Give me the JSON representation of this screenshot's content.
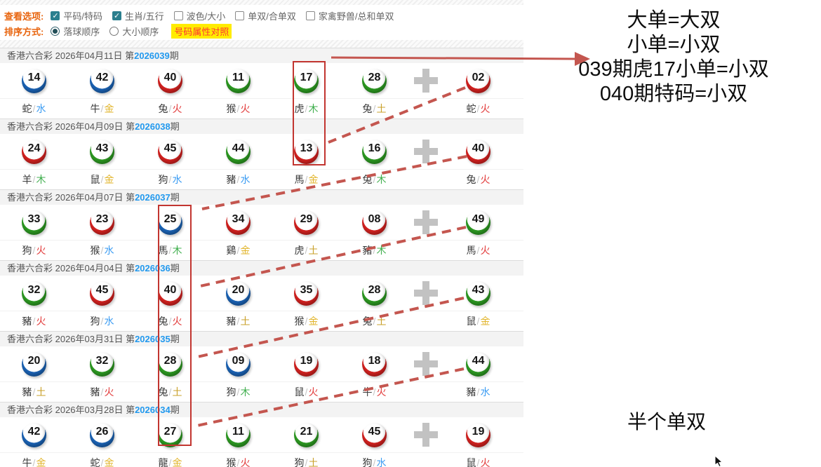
{
  "options": {
    "view_label": "查看选项:",
    "sort_label": "排序方式:",
    "checkboxes": [
      {
        "label": "平码/特码",
        "checked": true
      },
      {
        "label": "生肖/五行",
        "checked": true
      },
      {
        "label": "波色/大小",
        "checked": false
      },
      {
        "label": "单双/合单双",
        "checked": false
      },
      {
        "label": "家禽野兽/总和单双",
        "checked": false
      }
    ],
    "radios": [
      {
        "label": "落球顺序",
        "selected": true
      },
      {
        "label": "大小顺序",
        "selected": false
      }
    ],
    "compare_button": "号码属性对照"
  },
  "sections": [
    {
      "header_text": "香港六合彩 2026年04月11日 第",
      "issue": "2026039",
      "issue_suffix": "期",
      "balls": [
        {
          "num": "14",
          "color": "blue",
          "zodiac": "蛇",
          "element": "水"
        },
        {
          "num": "42",
          "color": "blue",
          "zodiac": "牛",
          "element": "金"
        },
        {
          "num": "40",
          "color": "red",
          "zodiac": "兔",
          "element": "火"
        },
        {
          "num": "11",
          "color": "green",
          "zodiac": "猴",
          "element": "火"
        },
        {
          "num": "17",
          "color": "green",
          "zodiac": "虎",
          "element": "木"
        },
        {
          "num": "28",
          "color": "green",
          "zodiac": "兔",
          "element": "土"
        },
        {
          "num": "02",
          "color": "red",
          "zodiac": "蛇",
          "element": "火",
          "special": true
        }
      ]
    },
    {
      "header_text": "香港六合彩 2026年04月09日 第",
      "issue": "2026038",
      "issue_suffix": "期",
      "balls": [
        {
          "num": "24",
          "color": "red",
          "zodiac": "羊",
          "element": "木"
        },
        {
          "num": "43",
          "color": "green",
          "zodiac": "鼠",
          "element": "金"
        },
        {
          "num": "45",
          "color": "red",
          "zodiac": "狗",
          "element": "水"
        },
        {
          "num": "44",
          "color": "green",
          "zodiac": "豬",
          "element": "水"
        },
        {
          "num": "13",
          "color": "red",
          "zodiac": "馬",
          "element": "金"
        },
        {
          "num": "16",
          "color": "green",
          "zodiac": "兔",
          "element": "木"
        },
        {
          "num": "40",
          "color": "red",
          "zodiac": "兔",
          "element": "火",
          "special": true
        }
      ]
    },
    {
      "header_text": "香港六合彩 2026年04月07日 第",
      "issue": "2026037",
      "issue_suffix": "期",
      "balls": [
        {
          "num": "33",
          "color": "green",
          "zodiac": "狗",
          "element": "火"
        },
        {
          "num": "23",
          "color": "red",
          "zodiac": "猴",
          "element": "水"
        },
        {
          "num": "25",
          "color": "blue",
          "zodiac": "馬",
          "element": "木"
        },
        {
          "num": "34",
          "color": "red",
          "zodiac": "鷄",
          "element": "金"
        },
        {
          "num": "29",
          "color": "red",
          "zodiac": "虎",
          "element": "土"
        },
        {
          "num": "08",
          "color": "red",
          "zodiac": "豬",
          "element": "木"
        },
        {
          "num": "49",
          "color": "green",
          "zodiac": "馬",
          "element": "火",
          "special": true
        }
      ]
    },
    {
      "header_text": "香港六合彩 2026年04月04日 第",
      "issue": "2026036",
      "issue_suffix": "期",
      "balls": [
        {
          "num": "32",
          "color": "green",
          "zodiac": "豬",
          "element": "火"
        },
        {
          "num": "45",
          "color": "red",
          "zodiac": "狗",
          "element": "水"
        },
        {
          "num": "40",
          "color": "red",
          "zodiac": "兔",
          "element": "火"
        },
        {
          "num": "20",
          "color": "blue",
          "zodiac": "豬",
          "element": "土"
        },
        {
          "num": "35",
          "color": "red",
          "zodiac": "猴",
          "element": "金"
        },
        {
          "num": "28",
          "color": "green",
          "zodiac": "兔",
          "element": "土"
        },
        {
          "num": "43",
          "color": "green",
          "zodiac": "鼠",
          "element": "金",
          "special": true
        }
      ]
    },
    {
      "header_text": "香港六合彩 2026年03月31日 第",
      "issue": "2026035",
      "issue_suffix": "期",
      "balls": [
        {
          "num": "20",
          "color": "blue",
          "zodiac": "豬",
          "element": "土"
        },
        {
          "num": "32",
          "color": "green",
          "zodiac": "豬",
          "element": "火"
        },
        {
          "num": "28",
          "color": "green",
          "zodiac": "兔",
          "element": "土"
        },
        {
          "num": "09",
          "color": "blue",
          "zodiac": "狗",
          "element": "木"
        },
        {
          "num": "19",
          "color": "red",
          "zodiac": "鼠",
          "element": "火"
        },
        {
          "num": "18",
          "color": "red",
          "zodiac": "牛",
          "element": "火"
        },
        {
          "num": "44",
          "color": "green",
          "zodiac": "豬",
          "element": "水",
          "special": true
        }
      ]
    },
    {
      "header_text": "香港六合彩 2026年03月28日 第",
      "issue": "2026034",
      "issue_suffix": "期",
      "balls": [
        {
          "num": "42",
          "color": "blue",
          "zodiac": "牛",
          "element": "金"
        },
        {
          "num": "26",
          "color": "blue",
          "zodiac": "蛇",
          "element": "金"
        },
        {
          "num": "27",
          "color": "green",
          "zodiac": "龍",
          "element": "金"
        },
        {
          "num": "11",
          "color": "green",
          "zodiac": "猴",
          "element": "火"
        },
        {
          "num": "21",
          "color": "green",
          "zodiac": "狗",
          "element": "土"
        },
        {
          "num": "45",
          "color": "red",
          "zodiac": "狗",
          "element": "水"
        },
        {
          "num": "19",
          "color": "red",
          "zodiac": "鼠",
          "element": "火",
          "special": true
        }
      ]
    }
  ],
  "annotations": {
    "lines": [
      "大单=大双",
      "小单=小双",
      "039期虎17小单=小双",
      "040期特码=小双"
    ],
    "bottom_note": "半个单双"
  },
  "colors": {
    "accent_orange": "#e8650f",
    "issue_blue": "#2299ee",
    "check_teal": "#2b7f8e",
    "highlight_yellow": "#ffec00",
    "annotation_red": "#c4564f",
    "rect_red": "#c23530",
    "ball": {
      "red": "#d42220",
      "blue": "#1b63b5",
      "green": "#2d9a22"
    },
    "elements": {
      "水": "#3d9df3",
      "金": "#e2b52c",
      "火": "#e23b3b",
      "木": "#3fae4d",
      "土": "#c9a02a"
    }
  }
}
